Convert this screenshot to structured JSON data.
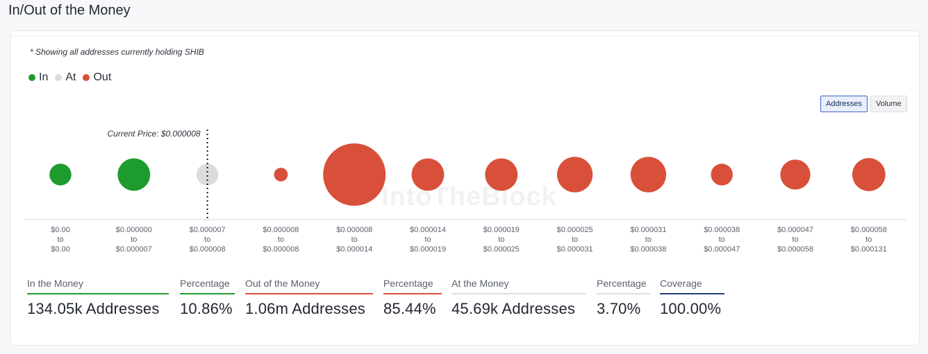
{
  "page": {
    "title": "In/Out of the Money"
  },
  "card": {
    "subtitle": "* Showing all addresses currently holding SHIB",
    "watermark": "IntoTheBlock",
    "legend": [
      {
        "label": "In",
        "color": "#1e9b2e"
      },
      {
        "label": "At",
        "color": "#dcdcdc"
      },
      {
        "label": "Out",
        "color": "#d9503a"
      }
    ],
    "toggle": {
      "addresses": "Addresses",
      "volume": "Volume",
      "active": "Addresses"
    }
  },
  "chart_data": {
    "type": "bubble",
    "current_price_label": "Current Price: $0.000008",
    "current_price_after_index": 2,
    "categories": [
      {
        "from": "$0.00",
        "to": "$0.00",
        "status": "in",
        "relative_size": 0.35
      },
      {
        "from": "$0.000000",
        "to": "$0.000007",
        "status": "in",
        "relative_size": 0.52
      },
      {
        "from": "$0.000007",
        "to": "$0.000008",
        "status": "at",
        "relative_size": 0.35
      },
      {
        "from": "$0.000008",
        "to": "$0.000008",
        "status": "out",
        "relative_size": 0.22
      },
      {
        "from": "$0.000008",
        "to": "$0.000014",
        "status": "out",
        "relative_size": 1.0
      },
      {
        "from": "$0.000014",
        "to": "$0.000019",
        "status": "out",
        "relative_size": 0.52
      },
      {
        "from": "$0.000019",
        "to": "$0.000025",
        "status": "out",
        "relative_size": 0.52
      },
      {
        "from": "$0.000025",
        "to": "$0.000031",
        "status": "out",
        "relative_size": 0.57
      },
      {
        "from": "$0.000031",
        "to": "$0.000038",
        "status": "out",
        "relative_size": 0.57
      },
      {
        "from": "$0.000038",
        "to": "$0.000047",
        "status": "out",
        "relative_size": 0.35
      },
      {
        "from": "$0.000047",
        "to": "$0.000058",
        "status": "out",
        "relative_size": 0.48
      },
      {
        "from": "$0.000058",
        "to": "$0.000131",
        "status": "out",
        "relative_size": 0.53
      }
    ],
    "to_word": "to",
    "colors": {
      "in": "#1e9b2e",
      "at": "#dcdcdc",
      "out": "#d9503a"
    }
  },
  "metrics": [
    {
      "label": "In the Money",
      "value": "134.05k Addresses",
      "color": "#1e9b2e"
    },
    {
      "label": "Percentage",
      "value": "10.86%",
      "color": "#1e9b2e"
    },
    {
      "label": "Out of the Money",
      "value": "1.06m Addresses",
      "color": "#d9503a"
    },
    {
      "label": "Percentage",
      "value": "85.44%",
      "color": "#d9503a"
    },
    {
      "label": "At the Money",
      "value": "45.69k Addresses",
      "color": "#dcdcdc"
    },
    {
      "label": "Percentage",
      "value": "3.70%",
      "color": "#dcdcdc"
    },
    {
      "label": "Coverage",
      "value": "100.00%",
      "color": "#1f3f7a"
    }
  ]
}
